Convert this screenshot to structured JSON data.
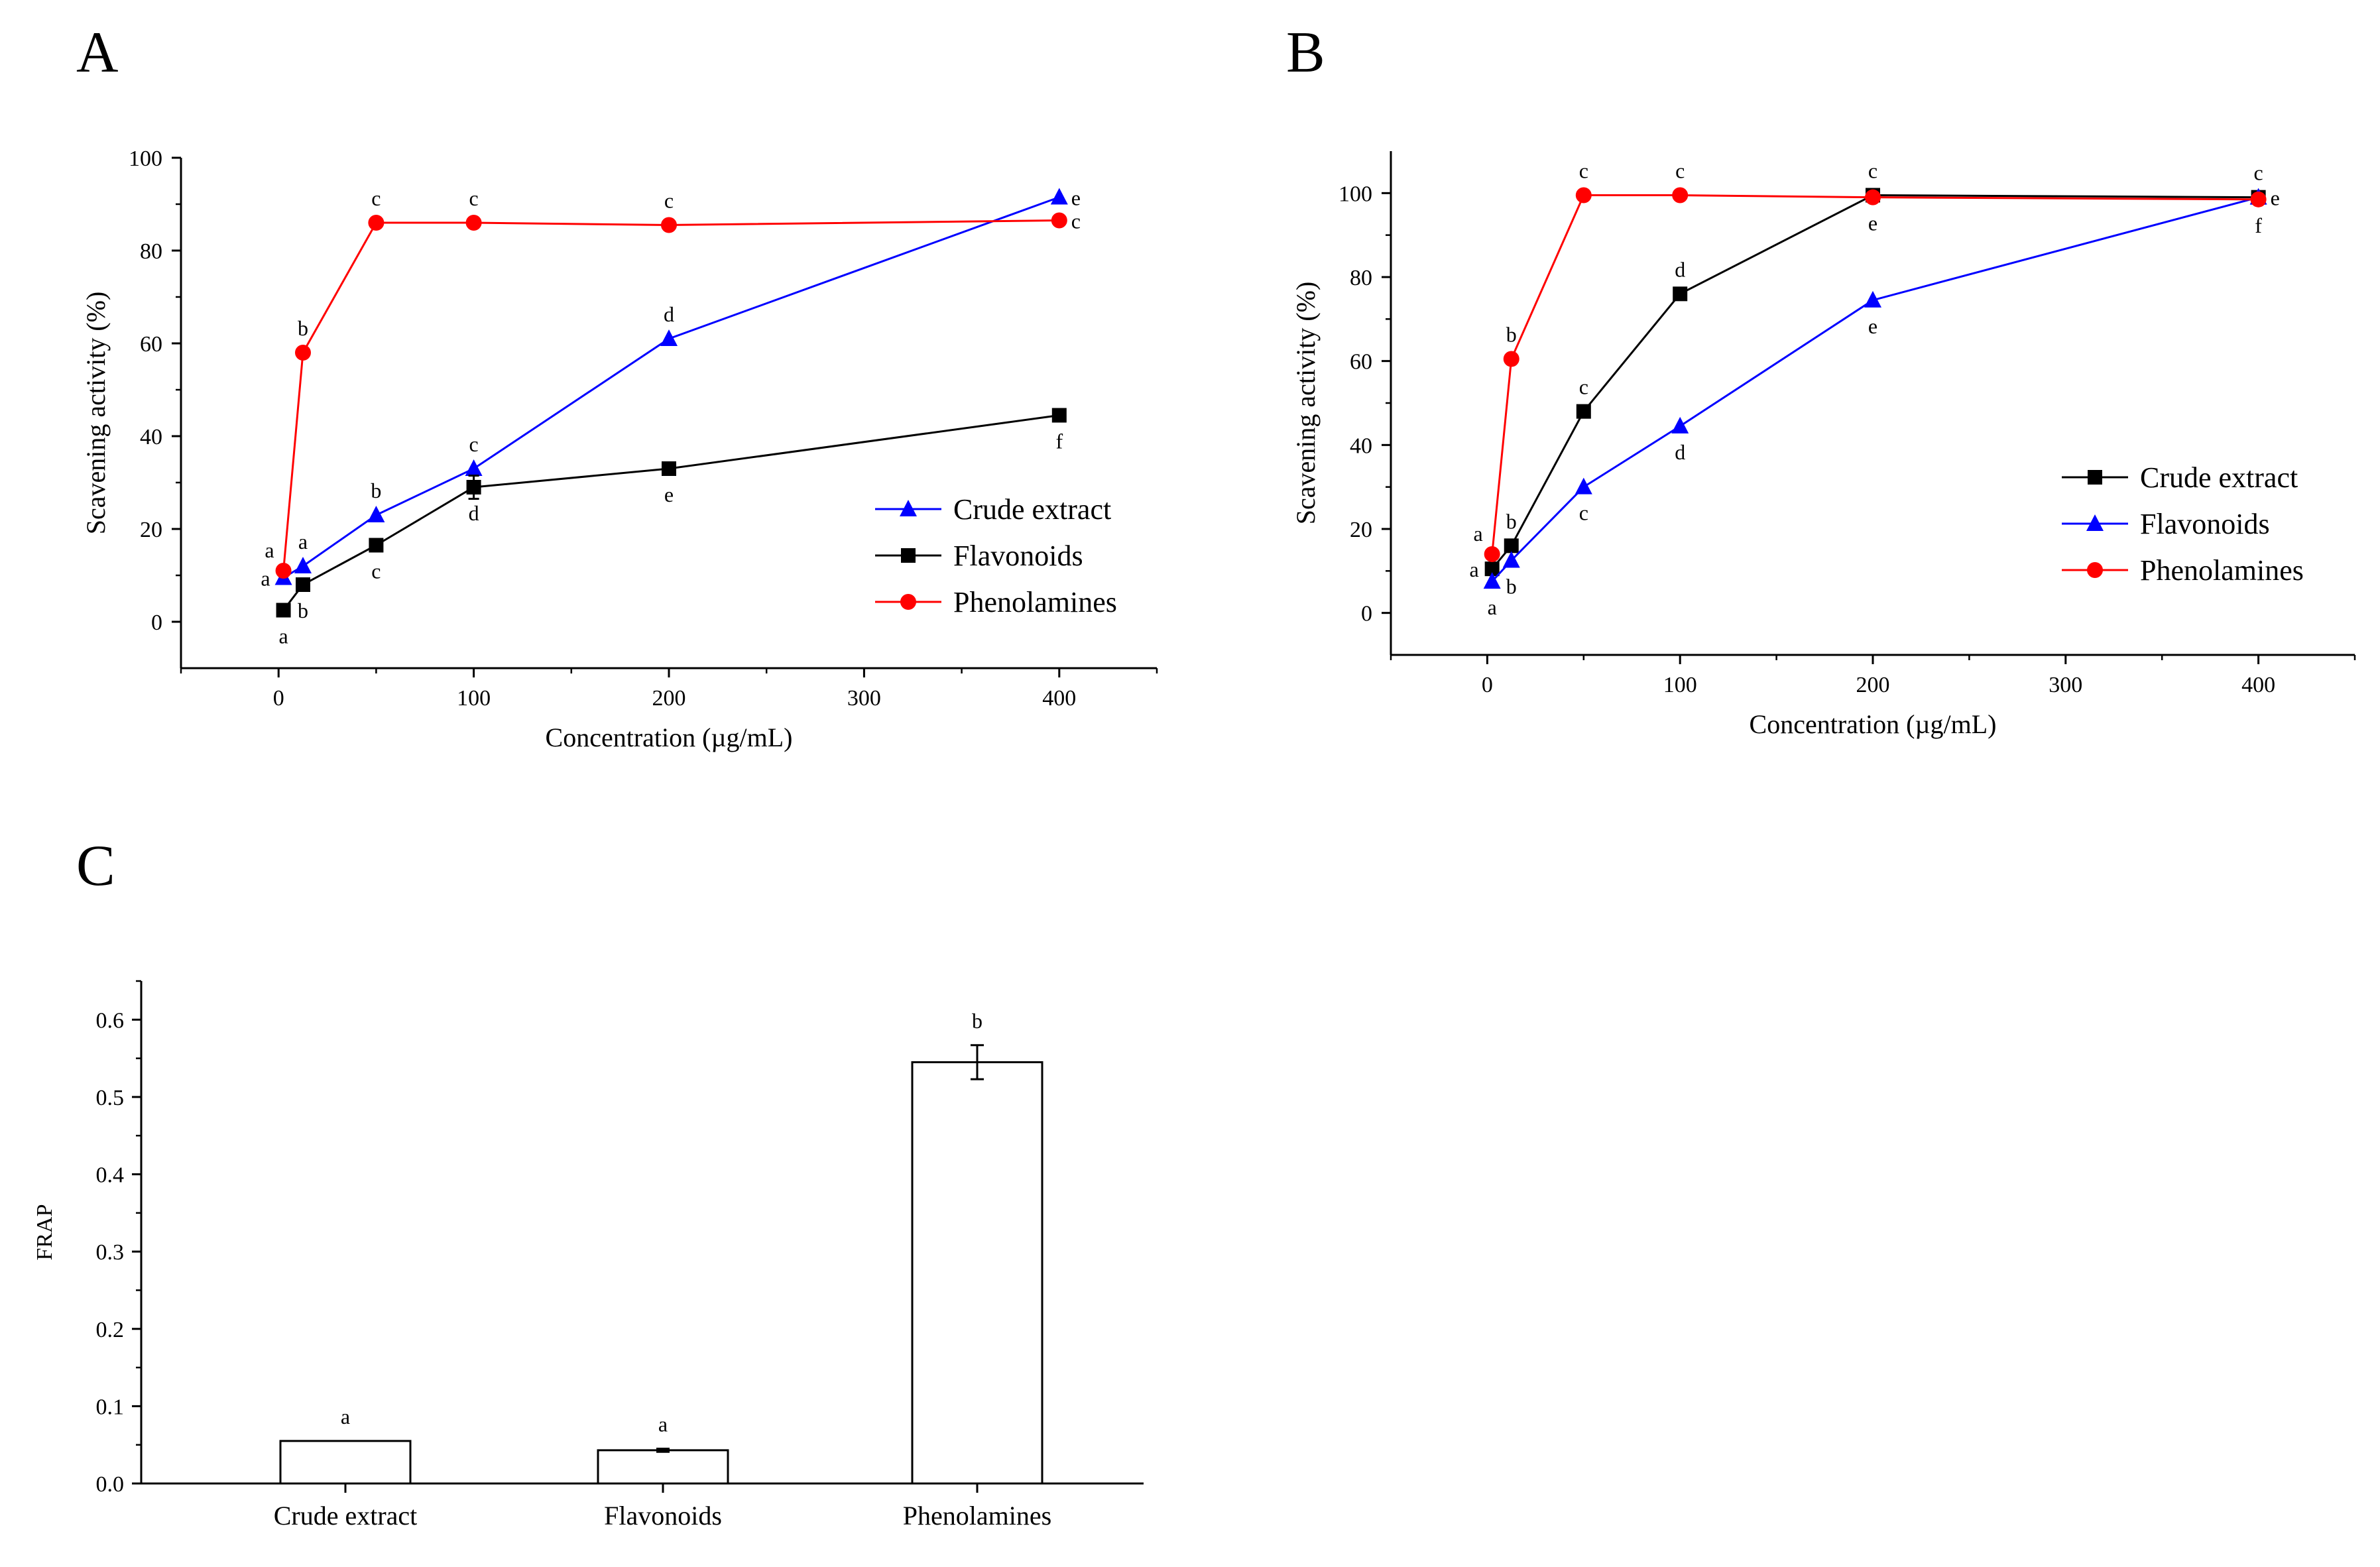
{
  "panels": {
    "a": "A",
    "b": "B",
    "c": "C"
  },
  "chart_data": [
    {
      "id": "A",
      "type": "line",
      "xlabel": "Concentration (µg/mL)",
      "ylabel": "Scavening activity (%)",
      "xlim": [
        -50,
        450
      ],
      "ylim": [
        -10,
        100
      ],
      "xticks": [
        0,
        100,
        200,
        300,
        400
      ],
      "yticks": [
        0,
        20,
        40,
        60,
        80,
        100
      ],
      "legend_position": "center-right",
      "series": [
        {
          "name": "Crude extract",
          "color": "#0000ff",
          "marker": "triangle",
          "x": [
            2.5,
            12.5,
            50,
            100,
            200,
            400
          ],
          "y": [
            9.5,
            12,
            23,
            33,
            61,
            91.5
          ],
          "sig": [
            "a",
            "a",
            "b",
            "c",
            "d",
            "e"
          ],
          "sig_pos": [
            "left",
            "above",
            "above",
            "above",
            "above",
            "right"
          ]
        },
        {
          "name": "Flavonoids",
          "color": "#000000",
          "marker": "square",
          "x": [
            2.5,
            12.5,
            50,
            100,
            200,
            400
          ],
          "y": [
            2.5,
            8,
            16.5,
            29,
            33,
            44.5
          ],
          "err": [
            0,
            0,
            0,
            2.5,
            0,
            0
          ],
          "sig": [
            "a",
            "b",
            "c",
            "d",
            "e",
            "f"
          ],
          "sig_pos": [
            "below",
            "below",
            "below",
            "below",
            "below",
            "below"
          ]
        },
        {
          "name": "Phenolamines",
          "color": "#ff0000",
          "marker": "circle",
          "x": [
            2.5,
            12.5,
            50,
            100,
            200,
            400
          ],
          "y": [
            11,
            58,
            86,
            86,
            85.5,
            86.5
          ],
          "sig": [
            "a",
            "b",
            "c",
            "c",
            "c",
            "c"
          ],
          "sig_pos": [
            "aboveleft",
            "above",
            "above",
            "above",
            "above",
            "right"
          ]
        }
      ]
    },
    {
      "id": "B",
      "type": "line",
      "xlabel": "Concentration (µg/mL)",
      "ylabel": "Scavening activity (%)",
      "xlim": [
        -50,
        450
      ],
      "ylim": [
        -10,
        110
      ],
      "xticks": [
        0,
        100,
        200,
        300,
        400
      ],
      "yticks": [
        0,
        20,
        40,
        60,
        80,
        100
      ],
      "legend_position": "center-right",
      "series": [
        {
          "name": "Crude extract",
          "color": "#000000",
          "marker": "square",
          "x": [
            2.5,
            12.5,
            50,
            100,
            200,
            400
          ],
          "y": [
            10.5,
            16,
            48,
            76,
            99.5,
            99
          ],
          "sig": [
            "a",
            "b",
            "c",
            "d",
            "c",
            "c"
          ],
          "sig_pos": [
            "left",
            "above",
            "above",
            "above",
            "above",
            "above"
          ]
        },
        {
          "name": "Flavonoids",
          "color": "#0000ff",
          "marker": "triangle",
          "x": [
            2.5,
            12.5,
            50,
            100,
            200,
            400
          ],
          "y": [
            7.5,
            12.5,
            30,
            44.5,
            74.5,
            99
          ],
          "sig": [
            "a",
            "b",
            "c",
            "d",
            "e",
            "e"
          ],
          "sig_pos": [
            "below",
            "below",
            "below",
            "below",
            "below",
            "right"
          ]
        },
        {
          "name": "Phenolamines",
          "color": "#ff0000",
          "marker": "circle",
          "x": [
            2.5,
            12.5,
            50,
            100,
            200,
            400
          ],
          "y": [
            14,
            60.5,
            99.5,
            99.5,
            99,
            98.5
          ],
          "sig": [
            "a",
            "b",
            "c",
            "c",
            "e",
            "f"
          ],
          "sig_pos": [
            "aboveleft",
            "above",
            "above",
            "above",
            "below",
            "below"
          ]
        }
      ]
    },
    {
      "id": "C",
      "type": "bar",
      "categories": [
        "Crude extract",
        "Flavonoids",
        "Phenolamines"
      ],
      "values": [
        0.055,
        0.043,
        0.545
      ],
      "errors": [
        0,
        0.002,
        0.022
      ],
      "sig": [
        "a",
        "a",
        "b"
      ],
      "ylabel": "FRAP",
      "ylim": [
        0,
        0.65
      ],
      "yticks": [
        "0.0",
        "0.1",
        "0.2",
        "0.3",
        "0.4",
        "0.5",
        "0.6"
      ]
    }
  ]
}
